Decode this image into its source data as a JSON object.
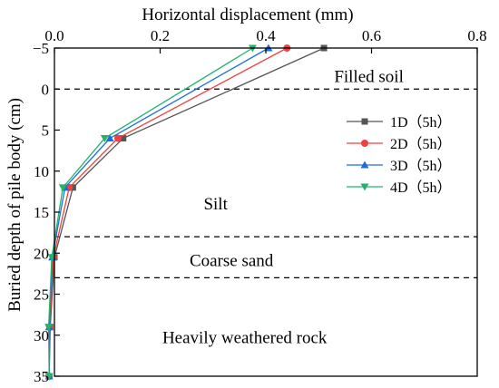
{
  "chart_data": {
    "type": "line",
    "xlabel": "Horizontal displacement (mm)",
    "ylabel": "Buried depth of pile body (cm)",
    "xlim": [
      0,
      0.8
    ],
    "ylim": [
      -5,
      35
    ],
    "x_axis_position": "top",
    "y_axis_inverted": true,
    "x_ticks": [
      0.0,
      0.2,
      0.4,
      0.6,
      0.8
    ],
    "x_tick_labels": [
      "0.0",
      "0.2",
      "0.4",
      "0.6",
      "0.8"
    ],
    "y_ticks": [
      -5,
      0,
      5,
      10,
      15,
      20,
      25,
      30,
      35
    ],
    "y_tick_labels": [
      "−5",
      "0",
      "5",
      "10",
      "15",
      "20",
      "25",
      "30",
      "35"
    ],
    "grid": false,
    "legend_placement": "right",
    "boundaries": [
      0,
      18,
      23
    ],
    "layer_labels": [
      {
        "text": "Filled soil",
        "x": 0.595,
        "y": -1.5
      },
      {
        "text": "Silt",
        "x": 0.305,
        "y": 14.0
      },
      {
        "text": "Coarse sand",
        "x": 0.335,
        "y": 20.9
      },
      {
        "text": "Heavily weathered rock",
        "x": 0.36,
        "y": 30.3
      }
    ],
    "series": [
      {
        "name": "1D（5h）",
        "color": "#555555",
        "marker": "square",
        "x": [
          0.51,
          0.13,
          0.035,
          0.0,
          -0.008,
          -0.01
        ],
        "y": [
          -5,
          6,
          12,
          20.5,
          29,
          35
        ]
      },
      {
        "name": "2D（5h）",
        "color": "#f04040",
        "marker": "circle",
        "x": [
          0.44,
          0.12,
          0.028,
          -0.002,
          -0.009,
          -0.01
        ],
        "y": [
          -5,
          6,
          12,
          20.5,
          29,
          35
        ]
      },
      {
        "name": "3D（5h）",
        "color": "#1a6fdf",
        "marker": "triangle-up",
        "x": [
          0.405,
          0.105,
          0.02,
          -0.004,
          -0.01,
          -0.01
        ],
        "y": [
          -5,
          6,
          12,
          20.5,
          29,
          35
        ]
      },
      {
        "name": "4D（5h）",
        "color": "#23b36b",
        "marker": "triangle-down",
        "x": [
          0.375,
          0.095,
          0.016,
          -0.005,
          -0.011,
          -0.01
        ],
        "y": [
          -5,
          6,
          12,
          20.5,
          29,
          35
        ]
      }
    ]
  }
}
